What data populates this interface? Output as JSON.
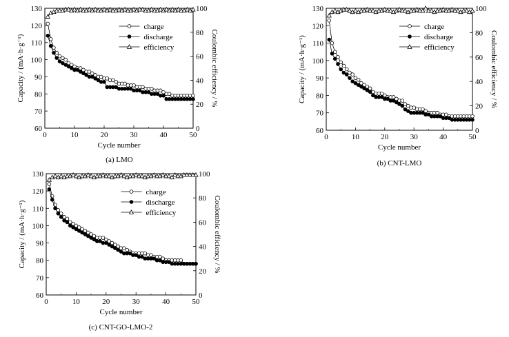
{
  "figure": {
    "panels": [
      {
        "caption": "(a) LMO",
        "xlabel": "Cycle number",
        "ylabel": "Capacity / (mA·h·g⁻¹)",
        "ylabel2": "Coulombic efficiency / %",
        "legend": [
          "charge",
          "discharge",
          "efficiency"
        ]
      },
      {
        "caption": "(b) CNT-LMO",
        "xlabel": "Cycle number",
        "ylabel": "Capacity / (mA·h·g⁻¹)",
        "ylabel2": "Coulombic efficiency / %",
        "legend": [
          "charge",
          "discharge",
          "efficiency"
        ]
      },
      {
        "caption": "(c) CNT-GO-LMO-2",
        "xlabel": "Cycle number",
        "ylabel": "Capacity / (mA·h·g⁻¹)",
        "ylabel2": "Coulombic efficiency / %",
        "legend": [
          "charge",
          "discharge",
          "efficiency"
        ]
      }
    ]
  },
  "chart_data": [
    {
      "type": "line",
      "caption": "(a) LMO",
      "xlabel": "Cycle number",
      "ylabel": "Capacity / (mA·h·g⁻¹)",
      "ylabel2": "Coulombic efficiency / %",
      "xlim": [
        0,
        50
      ],
      "ylim": [
        60,
        130
      ],
      "y2lim": [
        0,
        100
      ],
      "xticks": [
        0,
        10,
        20,
        30,
        40,
        50
      ],
      "yticks": [
        60,
        70,
        80,
        90,
        100,
        110,
        120,
        130
      ],
      "y2ticks": [
        0,
        20,
        40,
        60,
        80,
        100
      ],
      "legend_position": "top-right",
      "series": [
        {
          "name": "charge",
          "axis": "left",
          "marker": "open-circle",
          "x": [
            1,
            2,
            3,
            4,
            5,
            6,
            7,
            8,
            9,
            10,
            11,
            12,
            13,
            14,
            15,
            16,
            17,
            18,
            19,
            20,
            21,
            22,
            23,
            24,
            25,
            26,
            27,
            28,
            29,
            30,
            31,
            32,
            33,
            34,
            35,
            36,
            37,
            38,
            39,
            40,
            41,
            42,
            43,
            44,
            45,
            46,
            47,
            48,
            49,
            50
          ],
          "values": [
            121,
            112,
            107,
            104,
            102,
            101,
            100,
            98,
            97,
            96,
            95,
            95,
            94,
            93,
            93,
            92,
            91,
            90,
            90,
            89,
            89,
            88,
            88,
            87,
            86,
            86,
            86,
            85,
            85,
            85,
            84,
            84,
            84,
            83,
            83,
            83,
            82,
            82,
            82,
            81,
            80,
            80,
            79,
            79,
            79,
            79,
            79,
            79,
            79,
            79
          ]
        },
        {
          "name": "discharge",
          "axis": "left",
          "marker": "filled-circle",
          "x": [
            1,
            2,
            3,
            4,
            5,
            6,
            7,
            8,
            9,
            10,
            11,
            12,
            13,
            14,
            15,
            16,
            17,
            18,
            19,
            20,
            21,
            22,
            23,
            24,
            25,
            26,
            27,
            28,
            29,
            30,
            31,
            32,
            33,
            34,
            35,
            36,
            37,
            38,
            39,
            40,
            41,
            42,
            43,
            44,
            45,
            46,
            47,
            48,
            49,
            50
          ],
          "values": [
            114,
            108,
            104,
            101,
            99,
            98,
            97,
            96,
            95,
            94,
            94,
            93,
            92,
            91,
            90,
            90,
            89,
            88,
            87,
            87,
            84,
            84,
            84,
            84,
            83,
            83,
            83,
            83,
            83,
            82,
            82,
            82,
            81,
            81,
            81,
            80,
            80,
            80,
            79,
            79,
            77,
            77,
            77,
            77,
            77,
            77,
            77,
            77,
            77,
            77
          ]
        },
        {
          "name": "efficiency",
          "axis": "right",
          "marker": "open-triangle",
          "x": [
            1,
            2,
            3,
            4,
            5,
            6,
            7,
            8,
            9,
            10,
            11,
            12,
            13,
            14,
            15,
            16,
            17,
            18,
            19,
            20,
            21,
            22,
            23,
            24,
            25,
            26,
            27,
            28,
            29,
            30,
            31,
            32,
            33,
            34,
            35,
            36,
            37,
            38,
            39,
            40,
            41,
            42,
            43,
            44,
            45,
            46,
            47,
            48,
            49,
            50
          ],
          "values": [
            93,
            96,
            97,
            98,
            98,
            98,
            99,
            99,
            98,
            99,
            98,
            99,
            98,
            98,
            99,
            98,
            99,
            98,
            98,
            99,
            98,
            99,
            98,
            98,
            99,
            98,
            99,
            98,
            98,
            99,
            98,
            99,
            99,
            98,
            98,
            99,
            98,
            98,
            99,
            98,
            99,
            98,
            99,
            98,
            99,
            98,
            98,
            99,
            98,
            99
          ]
        }
      ]
    },
    {
      "type": "line",
      "caption": "(b) CNT-LMO",
      "xlabel": "Cycle number",
      "ylabel": "Capacity / (mA·h·g⁻¹)",
      "ylabel2": "Coulombic efficiency / %",
      "xlim": [
        0,
        50
      ],
      "ylim": [
        60,
        130
      ],
      "y2lim": [
        0,
        100
      ],
      "xticks": [
        0,
        10,
        20,
        30,
        40,
        50
      ],
      "yticks": [
        60,
        70,
        80,
        90,
        100,
        110,
        120,
        130
      ],
      "y2ticks": [
        0,
        20,
        40,
        60,
        80,
        100
      ],
      "legend_position": "top-right",
      "series": [
        {
          "name": "charge",
          "axis": "left",
          "marker": "open-circle",
          "x": [
            1,
            2,
            3,
            4,
            5,
            6,
            7,
            8,
            9,
            10,
            11,
            12,
            13,
            14,
            15,
            16,
            17,
            18,
            19,
            20,
            21,
            22,
            23,
            24,
            25,
            26,
            27,
            28,
            29,
            30,
            31,
            32,
            33,
            34,
            35,
            36,
            37,
            38,
            39,
            40,
            41,
            42,
            43,
            44,
            45,
            46,
            47,
            48,
            49,
            50
          ],
          "values": [
            123,
            110,
            105,
            102,
            99,
            97,
            95,
            93,
            92,
            90,
            89,
            87,
            86,
            85,
            84,
            82,
            81,
            81,
            81,
            80,
            79,
            79,
            79,
            78,
            77,
            77,
            75,
            74,
            73,
            73,
            72,
            72,
            72,
            71,
            70,
            70,
            70,
            70,
            69,
            69,
            69,
            68,
            68,
            68,
            68,
            68,
            68,
            68,
            68,
            68
          ]
        },
        {
          "name": "discharge",
          "axis": "left",
          "marker": "filled-circle",
          "x": [
            1,
            2,
            3,
            4,
            5,
            6,
            7,
            8,
            9,
            10,
            11,
            12,
            13,
            14,
            15,
            16,
            17,
            18,
            19,
            20,
            21,
            22,
            23,
            24,
            25,
            26,
            27,
            28,
            29,
            30,
            31,
            32,
            33,
            34,
            35,
            36,
            37,
            38,
            39,
            40,
            41,
            42,
            43,
            44,
            45,
            46,
            47,
            48,
            49,
            50
          ],
          "values": [
            112,
            104,
            101,
            98,
            95,
            93,
            92,
            90,
            88,
            87,
            86,
            85,
            84,
            83,
            82,
            80,
            79,
            79,
            79,
            78,
            78,
            77,
            77,
            76,
            75,
            74,
            72,
            71,
            70,
            70,
            70,
            70,
            70,
            69,
            69,
            68,
            68,
            68,
            68,
            67,
            67,
            67,
            66,
            66,
            66,
            66,
            66,
            66,
            66,
            66
          ]
        },
        {
          "name": "efficiency",
          "axis": "right",
          "marker": "open-triangle",
          "x": [
            1,
            2,
            3,
            4,
            5,
            6,
            7,
            8,
            9,
            10,
            11,
            12,
            13,
            14,
            15,
            16,
            17,
            18,
            19,
            20,
            21,
            22,
            23,
            24,
            25,
            26,
            27,
            28,
            29,
            30,
            31,
            32,
            33,
            34,
            35,
            36,
            37,
            38,
            39,
            40,
            41,
            42,
            43,
            44,
            45,
            46,
            47,
            48,
            49,
            50
          ],
          "values": [
            94,
            97,
            98,
            97,
            98,
            99,
            99,
            98,
            97,
            98,
            97,
            98,
            98,
            99,
            98,
            98,
            97,
            98,
            98,
            99,
            98,
            98,
            97,
            98,
            99,
            98,
            98,
            97,
            98,
            98,
            99,
            98,
            98,
            100,
            98,
            98,
            97,
            98,
            98,
            99,
            98,
            98,
            99,
            98,
            98,
            97,
            98,
            98,
            97,
            98
          ]
        }
      ]
    },
    {
      "type": "line",
      "caption": "(c) CNT-GO-LMO-2",
      "xlabel": "Cycle number",
      "ylabel": "Capacity / (mA·h·g⁻¹)",
      "ylabel2": "Coulombic efficiency / %",
      "xlim": [
        0,
        50
      ],
      "ylim": [
        60,
        130
      ],
      "y2lim": [
        0,
        100
      ],
      "xticks": [
        0,
        10,
        20,
        30,
        40,
        50
      ],
      "yticks": [
        60,
        70,
        80,
        90,
        100,
        110,
        120,
        130
      ],
      "y2ticks": [
        0,
        20,
        40,
        60,
        80,
        100
      ],
      "legend_position": "top-right",
      "series": [
        {
          "name": "charge",
          "axis": "left",
          "marker": "open-circle",
          "x": [
            1,
            2,
            3,
            4,
            5,
            6,
            7,
            8,
            9,
            10,
            11,
            12,
            13,
            14,
            15,
            16,
            17,
            18,
            19,
            20,
            21,
            22,
            23,
            24,
            25,
            26,
            27,
            28,
            29,
            30,
            31,
            32,
            33,
            34,
            35,
            36,
            37,
            38,
            39,
            40,
            41,
            42,
            43,
            44,
            45,
            46,
            47,
            48,
            49,
            50
          ],
          "values": [
            124,
            117,
            112,
            109,
            107,
            105,
            104,
            102,
            101,
            100,
            99,
            98,
            97,
            96,
            95,
            94,
            93,
            93,
            93,
            92,
            91,
            90,
            89,
            88,
            87,
            87,
            86,
            85,
            84,
            84,
            84,
            84,
            84,
            83,
            83,
            82,
            82,
            82,
            81,
            80,
            80,
            80,
            80,
            80,
            80,
            78,
            78,
            78,
            78,
            78
          ]
        },
        {
          "name": "discharge",
          "axis": "left",
          "marker": "filled-circle",
          "x": [
            1,
            2,
            3,
            4,
            5,
            6,
            7,
            8,
            9,
            10,
            11,
            12,
            13,
            14,
            15,
            16,
            17,
            18,
            19,
            20,
            21,
            22,
            23,
            24,
            25,
            26,
            27,
            28,
            29,
            30,
            31,
            32,
            33,
            34,
            35,
            36,
            37,
            38,
            39,
            40,
            41,
            42,
            43,
            44,
            45,
            46,
            47,
            48,
            49,
            50
          ],
          "values": [
            121,
            115,
            110,
            107,
            105,
            103,
            102,
            100,
            99,
            98,
            97,
            96,
            95,
            94,
            93,
            92,
            91,
            91,
            90,
            90,
            89,
            88,
            87,
            86,
            85,
            84,
            84,
            84,
            83,
            83,
            82,
            82,
            81,
            81,
            81,
            81,
            80,
            80,
            79,
            79,
            79,
            78,
            78,
            78,
            78,
            78,
            78,
            78,
            78,
            78
          ]
        },
        {
          "name": "efficiency",
          "axis": "right",
          "marker": "open-triangle",
          "x": [
            1,
            2,
            3,
            4,
            5,
            6,
            7,
            8,
            9,
            10,
            11,
            12,
            13,
            14,
            15,
            16,
            17,
            18,
            19,
            20,
            21,
            22,
            23,
            24,
            25,
            26,
            27,
            28,
            29,
            30,
            31,
            32,
            33,
            34,
            35,
            36,
            37,
            38,
            39,
            40,
            41,
            42,
            43,
            44,
            45,
            46,
            47,
            48,
            49,
            50
          ],
          "values": [
            95,
            97,
            98,
            97,
            98,
            97,
            98,
            98,
            99,
            98,
            97,
            98,
            98,
            99,
            98,
            97,
            98,
            98,
            99,
            98,
            98,
            97,
            98,
            98,
            99,
            98,
            97,
            98,
            98,
            99,
            98,
            98,
            97,
            98,
            98,
            99,
            98,
            98,
            99,
            98,
            98,
            97,
            99,
            98,
            98,
            99,
            99,
            99,
            99,
            99
          ]
        }
      ]
    }
  ]
}
